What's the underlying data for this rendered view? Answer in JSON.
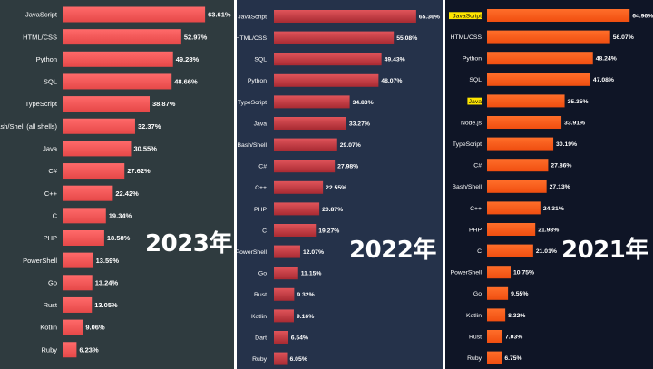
{
  "chart_data": [
    {
      "type": "bar",
      "orientation": "horizontal",
      "title": "2023年",
      "categories": [
        "JavaScript",
        "HTML/CSS",
        "Python",
        "SQL",
        "TypeScript",
        "Bash/Shell (all shells)",
        "Java",
        "C#",
        "C++",
        "C",
        "PHP",
        "PowerShell",
        "Go",
        "Rust",
        "Kotlin",
        "Ruby"
      ],
      "values": [
        63.61,
        52.97,
        49.28,
        48.66,
        38.87,
        32.37,
        30.55,
        27.62,
        22.42,
        19.34,
        18.58,
        13.59,
        13.24,
        13.05,
        9.06,
        6.23
      ],
      "value_labels": [
        "63.61%",
        "52.97%",
        "49.28%",
        "48.66%",
        "38.87%",
        "32.37%",
        "30.55%",
        "27.62%",
        "22.42%",
        "19.34%",
        "18.58%",
        "13.59%",
        "13.24%",
        "13.05%",
        "9.06%",
        "6.23%"
      ],
      "color": "#f05252",
      "background": "#2f3b3f"
    },
    {
      "type": "bar",
      "orientation": "horizontal",
      "title": "2022年",
      "categories": [
        "JavaScript",
        "HTML/CSS",
        "SQL",
        "Python",
        "TypeScript",
        "Java",
        "Bash/Shell",
        "C#",
        "C++",
        "PHP",
        "C",
        "PowerShell",
        "Go",
        "Rust",
        "Kotlin",
        "Dart",
        "Ruby"
      ],
      "values": [
        65.36,
        55.08,
        49.43,
        48.07,
        34.83,
        33.27,
        29.07,
        27.98,
        22.55,
        20.87,
        19.27,
        12.07,
        11.15,
        9.32,
        9.16,
        6.54,
        6.05
      ],
      "value_labels": [
        "65.36%",
        "55.08%",
        "49.43%",
        "48.07%",
        "34.83%",
        "33.27%",
        "29.07%",
        "27.98%",
        "22.55%",
        "20.87%",
        "19.27%",
        "12.07%",
        "11.15%",
        "9.32%",
        "9.16%",
        "6.54%",
        "6.05%"
      ],
      "color": "#c8383e",
      "background": "#25324a"
    },
    {
      "type": "bar",
      "orientation": "horizontal",
      "title": "2021年",
      "categories": [
        "JavaScript",
        "HTML/CSS",
        "Python",
        "SQL",
        "Java",
        "Node.js",
        "TypeScript",
        "C#",
        "Bash/Shell",
        "C++",
        "PHP",
        "C",
        "PowerShell",
        "Go",
        "Kotlin",
        "Rust",
        "Ruby"
      ],
      "values": [
        64.96,
        56.07,
        48.24,
        47.08,
        35.35,
        33.91,
        30.19,
        27.86,
        27.13,
        24.31,
        21.98,
        21.01,
        10.75,
        9.55,
        8.32,
        7.03,
        6.75
      ],
      "value_labels": [
        "64.96%",
        "56.07%",
        "48.24%",
        "47.08%",
        "35.35%",
        "33.91%",
        "30.19%",
        "27.86%",
        "27.13%",
        "24.31%",
        "21.98%",
        "21.01%",
        "10.75%",
        "9.55%",
        "8.32%",
        "7.03%",
        "6.75%"
      ],
      "highlighted_categories": [
        "JavaScript",
        "Java"
      ],
      "color": "#ff5a1a",
      "highlight_color": "#ffe600",
      "background": "#0f1526"
    }
  ]
}
